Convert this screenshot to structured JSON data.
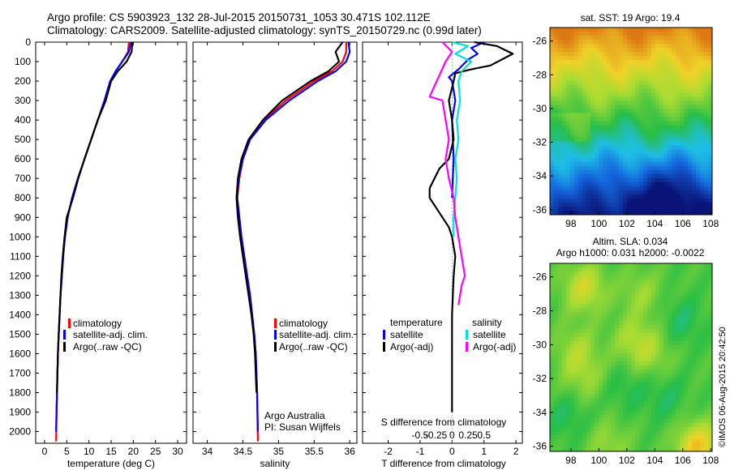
{
  "header": {
    "line1": "Argo profile: CS 5903923_132 28-Jul-2015 20150731_1053 30.471S 102.112E",
    "line2": "Climatology: CARS2009. Satellite-adjusted climatology: synTS_20150729.nc (0.99d later)"
  },
  "colors": {
    "climatology": "#ff0000",
    "satellite": "#0000ff",
    "argo": "#000000",
    "sal_satellite": "#00e0e0",
    "sal_argo": "#ff00ff"
  },
  "legend_profile": {
    "climatology": "climatology",
    "satellite": "satellite-adj. clim.",
    "argo": "Argo(..raw -QC)"
  },
  "legend_diff": {
    "temp_head": "temperature",
    "sal_head": "salinity",
    "satellite": "satellite",
    "argo": "Argo(-adj)"
  },
  "credits": {
    "owner": "Argo Australia",
    "pi": "PI: Susan Wijffels",
    "stamp": "©IMOS 06-Aug-2015 20:42:50"
  },
  "map_sst": {
    "title": "sat. SST: 19 Argo: 19.4",
    "xticks": [
      "98",
      "100",
      "102",
      "104",
      "106",
      "108"
    ],
    "yticks": [
      "-26",
      "-28",
      "-30",
      "-32",
      "-34",
      "-36"
    ]
  },
  "map_sla": {
    "title1": "Altim. SLA: 0.034",
    "title2": "Argo h1000: 0.031 h2000: -0.0022",
    "xticks": [
      "98",
      "100",
      "102",
      "104",
      "106",
      "108"
    ],
    "yticks": [
      "-26",
      "-28",
      "-30",
      "-32",
      "-34",
      "-36"
    ]
  },
  "chart_data": [
    {
      "type": "line",
      "panel": "temperature",
      "xlabel": "temperature (deg C)",
      "ylabel": "",
      "xlim": [
        -2,
        32
      ],
      "ylim": [
        2060,
        0
      ],
      "xticks": [
        0,
        5,
        10,
        15,
        20,
        25,
        30
      ],
      "yticks": [
        0,
        100,
        200,
        300,
        400,
        500,
        600,
        700,
        800,
        900,
        1000,
        1100,
        1200,
        1300,
        1400,
        1500,
        1600,
        1700,
        1800,
        1900,
        2000
      ],
      "series": [
        {
          "name": "climatology",
          "color": "#ff0000",
          "x": [
            19.0,
            18.8,
            17.5,
            16.0,
            14.8,
            13.5,
            12.0,
            10.5,
            9.0,
            7.5,
            6.2,
            5.2,
            4.6,
            4.2,
            3.9,
            3.6,
            3.4,
            3.2,
            3.0,
            2.9,
            2.7,
            2.6
          ],
          "y": [
            0,
            50,
            100,
            150,
            200,
            300,
            400,
            500,
            600,
            700,
            800,
            900,
            1000,
            1100,
            1200,
            1300,
            1400,
            1500,
            1600,
            1700,
            1900,
            2050
          ]
        },
        {
          "name": "satellite-adj. clim.",
          "color": "#0000ff",
          "x": [
            19.5,
            19.0,
            17.5,
            16.0,
            14.8,
            13.5,
            12.0,
            10.5,
            9.0,
            7.5,
            6.2,
            5.2,
            4.6,
            4.2,
            3.9,
            3.6,
            3.4,
            3.2,
            3.0,
            2.9,
            2.7,
            2.6
          ],
          "y": [
            0,
            50,
            100,
            150,
            200,
            300,
            400,
            500,
            600,
            700,
            800,
            900,
            1000,
            1100,
            1200,
            1300,
            1400,
            1500,
            1600,
            1700,
            1900,
            2000
          ]
        },
        {
          "name": "Argo(..raw -QC)",
          "color": "#000000",
          "x": [
            19.8,
            19.6,
            18.5,
            16.5,
            15.0,
            13.8,
            12.0,
            10.5,
            9.0,
            7.6,
            6.4,
            5.0,
            4.5,
            4.1,
            3.8,
            3.6,
            3.4,
            3.2,
            3.0,
            2.9,
            2.8
          ],
          "y": [
            0,
            50,
            100,
            150,
            200,
            300,
            400,
            500,
            600,
            700,
            800,
            900,
            1000,
            1100,
            1200,
            1300,
            1400,
            1500,
            1600,
            1700,
            1800
          ]
        }
      ]
    },
    {
      "type": "line",
      "panel": "salinity",
      "xlabel": "salinity",
      "xlim": [
        33.8,
        36.1
      ],
      "ylim": [
        2060,
        0
      ],
      "xticks": [
        34,
        34.5,
        35,
        35.5,
        36
      ],
      "series": [
        {
          "name": "climatology",
          "color": "#ff0000",
          "x": [
            35.95,
            35.95,
            35.9,
            35.75,
            35.5,
            35.1,
            34.8,
            34.6,
            34.5,
            34.45,
            34.42,
            34.45,
            34.48,
            34.52,
            34.56,
            34.6,
            34.63,
            34.66,
            34.68,
            34.7,
            34.71
          ],
          "y": [
            0,
            50,
            100,
            150,
            200,
            300,
            400,
            500,
            600,
            700,
            800,
            900,
            1000,
            1100,
            1200,
            1300,
            1400,
            1500,
            1600,
            1800,
            2050
          ]
        },
        {
          "name": "satellite-adj. clim.",
          "color": "#0000ff",
          "x": [
            35.98,
            36.0,
            35.95,
            35.8,
            35.55,
            35.15,
            34.82,
            34.6,
            34.5,
            34.44,
            34.42,
            34.45,
            34.48,
            34.52,
            34.56,
            34.6,
            34.63,
            34.66,
            34.68,
            34.7,
            34.71
          ],
          "y": [
            0,
            50,
            100,
            150,
            200,
            300,
            400,
            500,
            600,
            700,
            800,
            900,
            1000,
            1100,
            1200,
            1300,
            1400,
            1500,
            1600,
            1800,
            2000
          ]
        },
        {
          "name": "Argo(..raw -QC)",
          "color": "#000000",
          "x": [
            35.9,
            35.8,
            35.85,
            35.7,
            35.45,
            35.05,
            34.78,
            34.58,
            34.48,
            34.43,
            34.41,
            34.43,
            34.46,
            34.5,
            34.54,
            34.58,
            34.62,
            34.65,
            34.67,
            34.69
          ],
          "y": [
            0,
            50,
            100,
            150,
            200,
            300,
            400,
            500,
            600,
            700,
            800,
            900,
            1000,
            1100,
            1200,
            1300,
            1400,
            1500,
            1600,
            1800
          ]
        }
      ]
    },
    {
      "type": "line",
      "panel": "difference",
      "xlabel": "T difference from climatology",
      "x2label": "S difference from climatology",
      "xlim": [
        -2.8,
        2.2
      ],
      "ylim": [
        2060,
        0
      ],
      "xticks": [
        -2,
        -1,
        0,
        1,
        2
      ],
      "x2ticks": [
        "-0.5",
        "-0.25",
        "0",
        "0.25",
        "0.5"
      ],
      "series": [
        {
          "name": "temperature satellite",
          "color": "#0000ff",
          "x": [
            1.0,
            0.6,
            0.8,
            0.5,
            0.2,
            0.05,
            -0.1,
            0.0,
            0.1,
            0.0,
            0.05,
            0.0
          ],
          "y": [
            0,
            30,
            60,
            90,
            140,
            160,
            180,
            200,
            300,
            400,
            600,
            800
          ]
        },
        {
          "name": "temperature Argo(-adj)",
          "color": "#000000",
          "x": [
            0.7,
            1.4,
            1.9,
            1.2,
            0.6,
            0.1,
            0.05,
            -0.1,
            0.0,
            0.05,
            -0.1,
            -0.4,
            -0.7,
            -0.7,
            -0.5,
            -0.3,
            -0.1,
            0.0,
            0.1,
            0.05,
            0.0,
            0.0,
            0.0,
            0.0
          ],
          "y": [
            0,
            20,
            60,
            120,
            140,
            160,
            200,
            300,
            400,
            500,
            600,
            650,
            750,
            800,
            850,
            900,
            950,
            1000,
            1100,
            1200,
            1400,
            1600,
            1800,
            1900
          ]
        },
        {
          "name": "salinity satellite",
          "color": "#00e0e0",
          "x": [
            0.0,
            0.5,
            0.1,
            0.6,
            0.3,
            0.2,
            0.25,
            0.15,
            0.2,
            0.1,
            0.15,
            0.1,
            0.05,
            0.05
          ],
          "y": [
            0,
            20,
            60,
            100,
            150,
            200,
            300,
            400,
            500,
            600,
            700,
            800,
            900,
            1000
          ]
        },
        {
          "name": "salinity Argo(-adj)",
          "color": "#ff00ff",
          "x": [
            -0.3,
            0.0,
            -0.2,
            -0.7,
            -0.3,
            -0.2,
            -0.1,
            -0.2,
            -0.1,
            0.05,
            0.1,
            0.2,
            0.3,
            0.35,
            0.4,
            0.3,
            0.25,
            0.2
          ],
          "y": [
            0,
            50,
            100,
            280,
            300,
            400,
            500,
            600,
            700,
            800,
            900,
            1000,
            1100,
            1150,
            1200,
            1250,
            1300,
            1350
          ]
        }
      ]
    }
  ]
}
